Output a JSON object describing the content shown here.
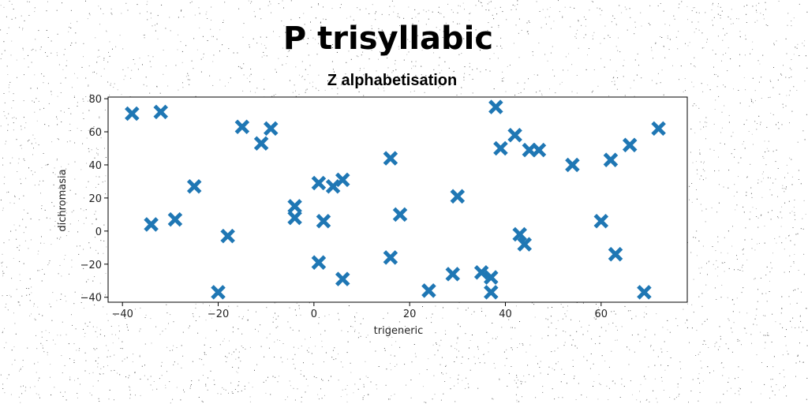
{
  "chart_data": {
    "type": "scatter",
    "title": "P trisyllabic",
    "subtitle": "Z alphabetisation",
    "xlabel": "trigeneric",
    "ylabel": "dichromasia",
    "xlim": [
      -43,
      78
    ],
    "ylim": [
      -43,
      81
    ],
    "xticks": [
      -40,
      -20,
      0,
      20,
      40,
      60
    ],
    "yticks": [
      -40,
      -20,
      0,
      20,
      40,
      60,
      80
    ],
    "marker": "X",
    "color": "#1f77b4",
    "grid": false,
    "points": [
      {
        "x": -38,
        "y": 71
      },
      {
        "x": -32,
        "y": 72
      },
      {
        "x": -34,
        "y": 4
      },
      {
        "x": -29,
        "y": 7
      },
      {
        "x": -25,
        "y": 27
      },
      {
        "x": -20,
        "y": -37
      },
      {
        "x": -18,
        "y": -3
      },
      {
        "x": -15,
        "y": 63
      },
      {
        "x": -11,
        "y": 53
      },
      {
        "x": -9,
        "y": 62
      },
      {
        "x": -4,
        "y": 15
      },
      {
        "x": -4,
        "y": 8
      },
      {
        "x": 1,
        "y": 29
      },
      {
        "x": 2,
        "y": 6
      },
      {
        "x": 1,
        "y": -19
      },
      {
        "x": 4,
        "y": 27
      },
      {
        "x": 6,
        "y": 31
      },
      {
        "x": 6,
        "y": -29
      },
      {
        "x": 16,
        "y": 44
      },
      {
        "x": 16,
        "y": -16
      },
      {
        "x": 18,
        "y": 10
      },
      {
        "x": 24,
        "y": -36
      },
      {
        "x": 29,
        "y": -26
      },
      {
        "x": 30,
        "y": 21
      },
      {
        "x": 35,
        "y": -25
      },
      {
        "x": 37,
        "y": -28
      },
      {
        "x": 37,
        "y": -37
      },
      {
        "x": 38,
        "y": 75
      },
      {
        "x": 39,
        "y": 50
      },
      {
        "x": 42,
        "y": 58
      },
      {
        "x": 43,
        "y": -2
      },
      {
        "x": 44,
        "y": -8
      },
      {
        "x": 45,
        "y": 49
      },
      {
        "x": 47,
        "y": 49
      },
      {
        "x": 54,
        "y": 40
      },
      {
        "x": 60,
        "y": 6
      },
      {
        "x": 62,
        "y": 43
      },
      {
        "x": 63,
        "y": -14
      },
      {
        "x": 66,
        "y": 52
      },
      {
        "x": 69,
        "y": -37
      },
      {
        "x": 72,
        "y": 62
      }
    ]
  }
}
